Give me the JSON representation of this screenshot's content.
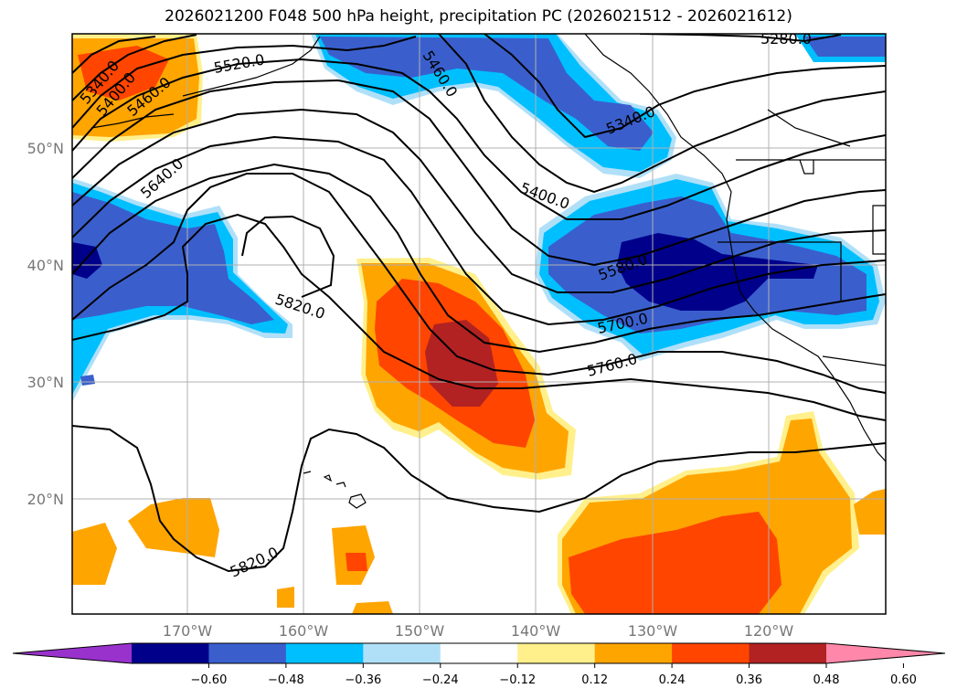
{
  "title": "2026021200 F048 500 hPa height, precipitation PC (2026021512 - 2026021612)",
  "lat_labels": [
    "50°N",
    "40°N",
    "30°N",
    "20°N"
  ],
  "lon_labels": [
    "170°W",
    "160°W",
    "150°W",
    "140°W",
    "130°W",
    "120°W"
  ],
  "contour_labels": [
    "5280.0",
    "5340.0",
    "5340.0",
    "5400.0",
    "5400.0",
    "5460.0",
    "5460.0",
    "5520.0",
    "5580.0",
    "5640.0",
    "5700.0",
    "5760.0",
    "5820.0",
    "5820.0"
  ],
  "colorbar": {
    "ticks": [
      "−0.60",
      "−0.48",
      "−0.36",
      "−0.24",
      "−0.12",
      "0.12",
      "0.24",
      "0.36",
      "0.48",
      "0.60"
    ],
    "colors": [
      "#9932cc",
      "#00008b",
      "#3a5fcd",
      "#00bfff",
      "#b0e0f8",
      "#ffffff",
      "#fff08c",
      "#ffa500",
      "#ff4500",
      "#b22222",
      "#ff88aa"
    ]
  }
}
